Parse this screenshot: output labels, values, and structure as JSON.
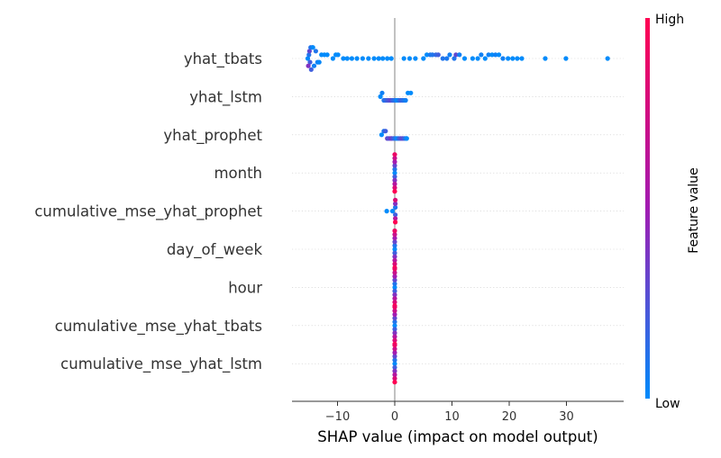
{
  "chart_data": {
    "type": "scatter",
    "subtype": "shap-beeswarm",
    "xlabel": "SHAP value (impact on model output)",
    "xlim": [
      -18,
      39.5
    ],
    "xticks": [
      {
        "value": -10,
        "label": "−10"
      },
      {
        "value": 0,
        "label": "0"
      },
      {
        "value": 10,
        "label": "10"
      },
      {
        "value": 20,
        "label": "20"
      },
      {
        "value": 30,
        "label": "30"
      }
    ],
    "features": [
      {
        "name": "yhat_tbats",
        "points": [
          [
            -15.2,
            0.0
          ],
          [
            -15.0,
            0.1
          ],
          [
            -14.8,
            0.2
          ],
          [
            -14.9,
            0.3
          ],
          [
            -15.1,
            0.4
          ],
          [
            -14.7,
            0.1
          ],
          [
            -14.6,
            0.2
          ],
          [
            -14.4,
            0.1
          ],
          [
            -14.3,
            0.0
          ],
          [
            -14.1,
            0.05
          ],
          [
            -13.8,
            0.1
          ],
          [
            -13.5,
            0.05
          ],
          [
            -13.2,
            0.02
          ],
          [
            -12.8,
            0.0
          ],
          [
            -12.3,
            0.0
          ],
          [
            -11.8,
            0.0
          ],
          [
            -10.8,
            0.0
          ],
          [
            -10.3,
            0.0
          ],
          [
            -9.9,
            0.0
          ],
          [
            -9.0,
            0.0
          ],
          [
            -8.3,
            0.0
          ],
          [
            -7.5,
            0.0
          ],
          [
            -6.6,
            0.0
          ],
          [
            -5.6,
            0.0
          ],
          [
            -4.6,
            0.0
          ],
          [
            -3.6,
            0.0
          ],
          [
            -2.8,
            0.0
          ],
          [
            -2.1,
            0.0
          ],
          [
            -1.3,
            0.0
          ],
          [
            -0.6,
            0.0
          ],
          [
            1.6,
            0.0
          ],
          [
            2.6,
            0.0
          ],
          [
            3.6,
            0.0
          ],
          [
            5.0,
            0.0
          ],
          [
            5.6,
            0.0
          ],
          [
            6.2,
            0.08
          ],
          [
            6.6,
            0.1
          ],
          [
            7.2,
            0.15
          ],
          [
            7.6,
            0.2
          ],
          [
            8.4,
            0.1
          ],
          [
            9.1,
            0.08
          ],
          [
            9.6,
            0.05
          ],
          [
            10.4,
            0.1
          ],
          [
            10.7,
            0.3
          ],
          [
            11.3,
            0.05
          ],
          [
            12.2,
            0.0
          ],
          [
            13.6,
            0.0
          ],
          [
            14.5,
            0.0
          ],
          [
            15.1,
            0.05
          ],
          [
            15.8,
            0.0
          ],
          [
            16.4,
            0.05
          ],
          [
            17.0,
            0.0
          ],
          [
            17.6,
            0.05
          ],
          [
            18.2,
            0.0
          ],
          [
            18.9,
            0.05
          ],
          [
            19.8,
            0.0
          ],
          [
            20.6,
            0.0
          ],
          [
            21.4,
            0.0
          ],
          [
            22.2,
            0.0
          ],
          [
            26.3,
            0.0
          ],
          [
            29.9,
            0.0
          ],
          [
            37.2,
            0.0
          ]
        ]
      },
      {
        "name": "yhat_lstm",
        "points": [
          [
            -2.5,
            0.0
          ],
          [
            -2.2,
            0.05
          ],
          [
            -1.9,
            0.1
          ],
          [
            -1.6,
            0.15
          ],
          [
            -1.3,
            0.2
          ],
          [
            -1.0,
            0.25
          ],
          [
            -0.7,
            0.3
          ],
          [
            -0.4,
            0.2
          ],
          [
            -0.2,
            0.15
          ],
          [
            0.1,
            0.1
          ],
          [
            0.4,
            0.0
          ],
          [
            0.7,
            0.1
          ],
          [
            1.0,
            0.2
          ],
          [
            1.3,
            0.15
          ],
          [
            1.6,
            0.1
          ],
          [
            1.9,
            0.05
          ],
          [
            2.3,
            0.0
          ],
          [
            2.8,
            0.0
          ]
        ]
      },
      {
        "name": "yhat_prophet",
        "points": [
          [
            -2.3,
            0.0
          ],
          [
            -1.9,
            0.1
          ],
          [
            -1.6,
            0.2
          ],
          [
            -1.3,
            0.3
          ],
          [
            -1.0,
            0.25
          ],
          [
            -0.7,
            0.4
          ],
          [
            -0.5,
            0.3
          ],
          [
            -0.2,
            0.2
          ],
          [
            0.1,
            0.1
          ],
          [
            0.4,
            0.0
          ],
          [
            0.7,
            0.15
          ],
          [
            1.0,
            0.25
          ],
          [
            1.3,
            0.3
          ],
          [
            1.6,
            0.2
          ],
          [
            1.9,
            0.1
          ],
          [
            2.1,
            0.0
          ]
        ]
      },
      {
        "name": "month",
        "points": [
          [
            0.0,
            0.0
          ],
          [
            0.0,
            0.1
          ],
          [
            0.0,
            0.2
          ],
          [
            0.0,
            0.3
          ],
          [
            0.0,
            0.4
          ],
          [
            0.0,
            0.5
          ],
          [
            0.0,
            0.6
          ],
          [
            0.0,
            0.7
          ],
          [
            0.0,
            0.8
          ],
          [
            0.0,
            0.9
          ],
          [
            0.0,
            1.0
          ]
        ]
      },
      {
        "name": "cumulative_mse_yhat_prophet",
        "points": [
          [
            -1.4,
            0.0
          ],
          [
            -0.4,
            0.0
          ],
          [
            0.1,
            0.1
          ],
          [
            0.1,
            0.2
          ],
          [
            0.1,
            0.4
          ],
          [
            0.1,
            0.6
          ],
          [
            0.1,
            0.8
          ],
          [
            0.1,
            1.0
          ]
        ]
      },
      {
        "name": "day_of_week",
        "points": [
          [
            0.0,
            0.0
          ],
          [
            0.0,
            0.1
          ],
          [
            0.0,
            0.2
          ],
          [
            0.0,
            0.3
          ],
          [
            0.0,
            0.4
          ],
          [
            0.0,
            0.5
          ],
          [
            0.0,
            0.6
          ],
          [
            0.0,
            0.7
          ],
          [
            0.0,
            0.8
          ],
          [
            0.0,
            0.9
          ],
          [
            0.0,
            1.0
          ]
        ]
      },
      {
        "name": "hour",
        "points": [
          [
            0.0,
            0.0
          ],
          [
            0.0,
            0.1
          ],
          [
            0.0,
            0.2
          ],
          [
            0.0,
            0.3
          ],
          [
            0.0,
            0.4
          ],
          [
            0.0,
            0.5
          ],
          [
            0.0,
            0.6
          ],
          [
            0.0,
            0.7
          ],
          [
            0.0,
            0.8
          ],
          [
            0.0,
            0.9
          ],
          [
            0.0,
            1.0
          ]
        ]
      },
      {
        "name": "cumulative_mse_yhat_tbats",
        "points": [
          [
            0.0,
            0.0
          ],
          [
            0.0,
            0.1
          ],
          [
            0.0,
            0.2
          ],
          [
            0.0,
            0.3
          ],
          [
            0.0,
            0.4
          ],
          [
            0.0,
            0.5
          ],
          [
            0.0,
            0.6
          ],
          [
            0.0,
            0.7
          ],
          [
            0.0,
            0.8
          ],
          [
            0.0,
            0.9
          ],
          [
            0.0,
            1.0
          ]
        ]
      },
      {
        "name": "cumulative_mse_yhat_lstm",
        "points": [
          [
            0.0,
            0.0
          ],
          [
            0.0,
            0.1
          ],
          [
            0.0,
            0.2
          ],
          [
            0.0,
            0.3
          ],
          [
            0.0,
            0.4
          ],
          [
            0.0,
            0.5
          ],
          [
            0.0,
            0.6
          ],
          [
            0.0,
            0.7
          ],
          [
            0.0,
            0.8
          ],
          [
            0.0,
            0.9
          ],
          [
            0.0,
            1.0
          ]
        ]
      }
    ],
    "colorbar": {
      "label": "Feature value",
      "high_label": "High",
      "low_label": "Low",
      "low_color": "#008bfb",
      "mid_color": "#a11cb2",
      "high_color": "#ff0052"
    }
  }
}
